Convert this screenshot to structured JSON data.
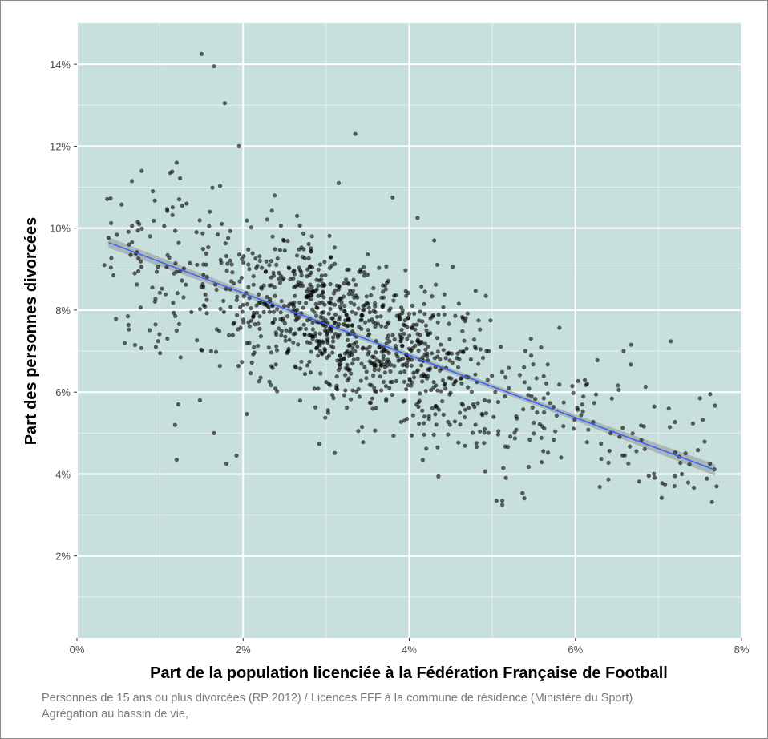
{
  "chart_data": {
    "type": "scatter",
    "title": "",
    "xlabel": "Part de la population licenciée à la Fédération Française de Football",
    "ylabel": "Part des personnes divorcées",
    "xlim": [
      0,
      8
    ],
    "ylim": [
      0,
      15
    ],
    "x_ticks": [
      0,
      2,
      4,
      6,
      8
    ],
    "x_tick_labels": [
      "0%",
      "2%",
      "4%",
      "6%",
      "8%"
    ],
    "y_ticks": [
      2,
      4,
      6,
      8,
      10,
      12,
      14
    ],
    "y_tick_labels": [
      "2%",
      "4%",
      "6%",
      "8%",
      "10%",
      "12%",
      "14%"
    ],
    "grid": true,
    "panel_color": "#c8e0dd",
    "point_color": "#000000",
    "trend_color": "#3366ff",
    "band_color": "#999999",
    "trend_line": {
      "x": [
        0.38,
        7.68
      ],
      "y": [
        9.65,
        4.1
      ],
      "ci_halfwidth": [
        0.13,
        0.07,
        0.06,
        0.07,
        0.14
      ]
    },
    "outliers": {
      "x": [
        1.5,
        1.65,
        1.78,
        1.95,
        3.35,
        0.78,
        1.2,
        1.12,
        0.75,
        0.88,
        1.05,
        1.18,
        1.2,
        1.48,
        1.32,
        1.65,
        1.92,
        2.38,
        3.15,
        3.8,
        4.1,
        4.3,
        5.05,
        5.12,
        5.12,
        6.58,
        7.5,
        7.7,
        7.08,
        7.2,
        0.33,
        1.0,
        1.2,
        1.22,
        1.8,
        0.95,
        6.95
      ],
      "y": [
        14.25,
        13.95,
        13.05,
        12.0,
        12.3,
        11.4,
        11.6,
        11.35,
        10.1,
        9.8,
        10.05,
        5.2,
        4.35,
        5.8,
        10.6,
        5.0,
        4.45,
        10.8,
        11.1,
        10.75,
        10.25,
        9.7,
        3.35,
        3.25,
        3.35,
        7.0,
        5.85,
        3.7,
        3.75,
        3.95,
        9.1,
        6.95,
        7.5,
        5.7,
        4.25,
        7.1,
        5.65
      ]
    },
    "cloud": {
      "n": 1180,
      "x_range": [
        0.35,
        7.7
      ],
      "y_range": [
        3.2,
        14.3
      ],
      "density_center_x": [
        3.0,
        3.6
      ],
      "density_center_y": [
        6.5,
        8.5
      ]
    },
    "source_note": [
      "Personnes de 15 ans ou plus divorcées (RP 2012) /  Licences FFF à la commune de résidence (Ministère du Sport)",
      "Agrégation au bassin de vie,"
    ]
  }
}
